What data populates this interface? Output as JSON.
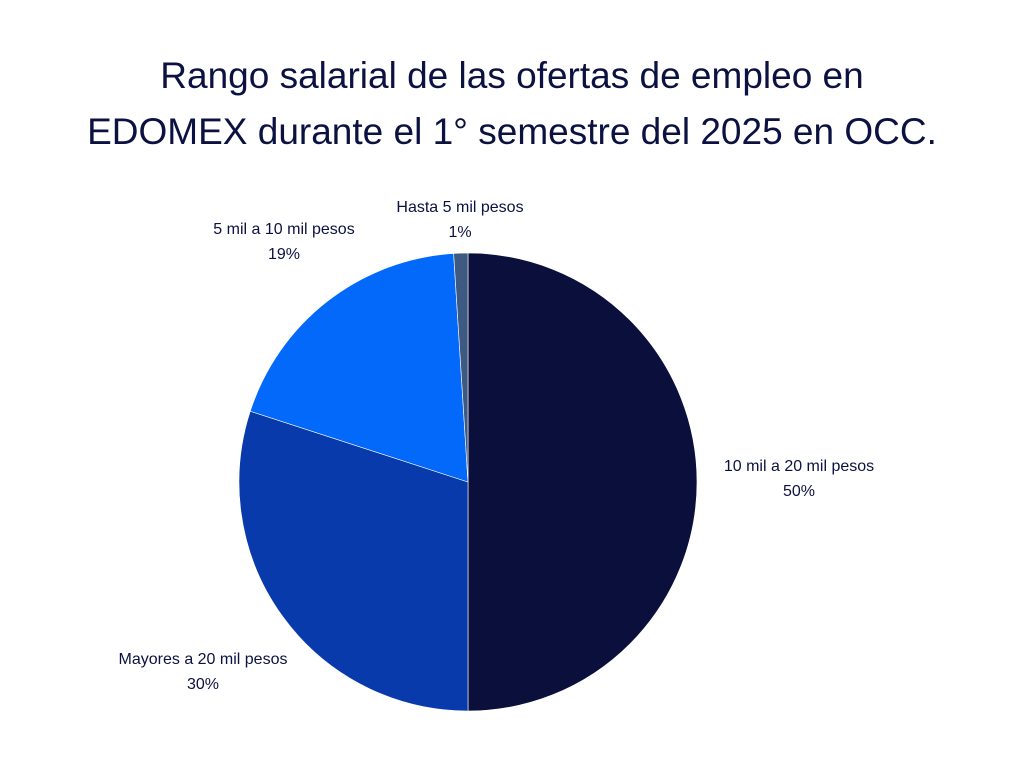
{
  "chart_data": {
    "type": "pie",
    "title_lines": [
      "Rango salarial de las ofertas de empleo en",
      "EDOMEX durante el 1° semestre del 2025 en OCC."
    ],
    "slices": [
      {
        "label": "10 mil a 20 mil pesos",
        "value": 50,
        "value_label": "50%",
        "color": "#0b0f3b"
      },
      {
        "label": "Mayores a 20 mil pesos",
        "value": 30,
        "value_label": "30%",
        "color": "#083aab"
      },
      {
        "label": "5 mil a 10 mil pesos",
        "value": 19,
        "value_label": "19%",
        "color": "#0369fb"
      },
      {
        "label": "Hasta 5 mil pesos",
        "value": 1,
        "value_label": "1%",
        "color": "#3e5a83"
      }
    ],
    "start": "12 o'clock",
    "direction": "clockwise",
    "legend": "none"
  }
}
